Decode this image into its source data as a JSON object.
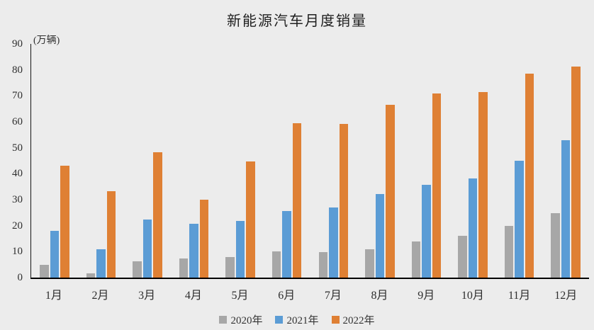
{
  "chart_data": {
    "type": "bar",
    "title": "新能源汽车月度销量",
    "unit_label": "(万辆)",
    "xlabel": "",
    "ylabel": "(万辆)",
    "categories": [
      "1月",
      "2月",
      "3月",
      "4月",
      "5月",
      "6月",
      "7月",
      "8月",
      "9月",
      "10月",
      "11月",
      "12月"
    ],
    "series": [
      {
        "name": "2020年",
        "color": "#A7A7A7",
        "values": [
          5.0,
          1.7,
          6.4,
          7.3,
          8.0,
          10.2,
          9.8,
          10.9,
          14.0,
          16.0,
          20.0,
          24.8
        ]
      },
      {
        "name": "2021年",
        "color": "#5B9CD5",
        "values": [
          17.9,
          10.9,
          22.5,
          20.6,
          21.7,
          25.7,
          27.1,
          32.1,
          35.6,
          38.3,
          45.0,
          52.9
        ]
      },
      {
        "name": "2022年",
        "color": "#DF8034",
        "values": [
          43.1,
          33.4,
          48.4,
          29.9,
          44.6,
          59.5,
          59.2,
          66.6,
          70.8,
          71.4,
          78.6,
          81.4
        ]
      }
    ],
    "ylim": [
      0,
      90
    ],
    "y_ticks": [
      0,
      10,
      20,
      30,
      40,
      50,
      60,
      70,
      80,
      90
    ],
    "grid": false,
    "legend_position": "bottom",
    "background_color": "#ECECEC",
    "axis_color": "#000000"
  }
}
